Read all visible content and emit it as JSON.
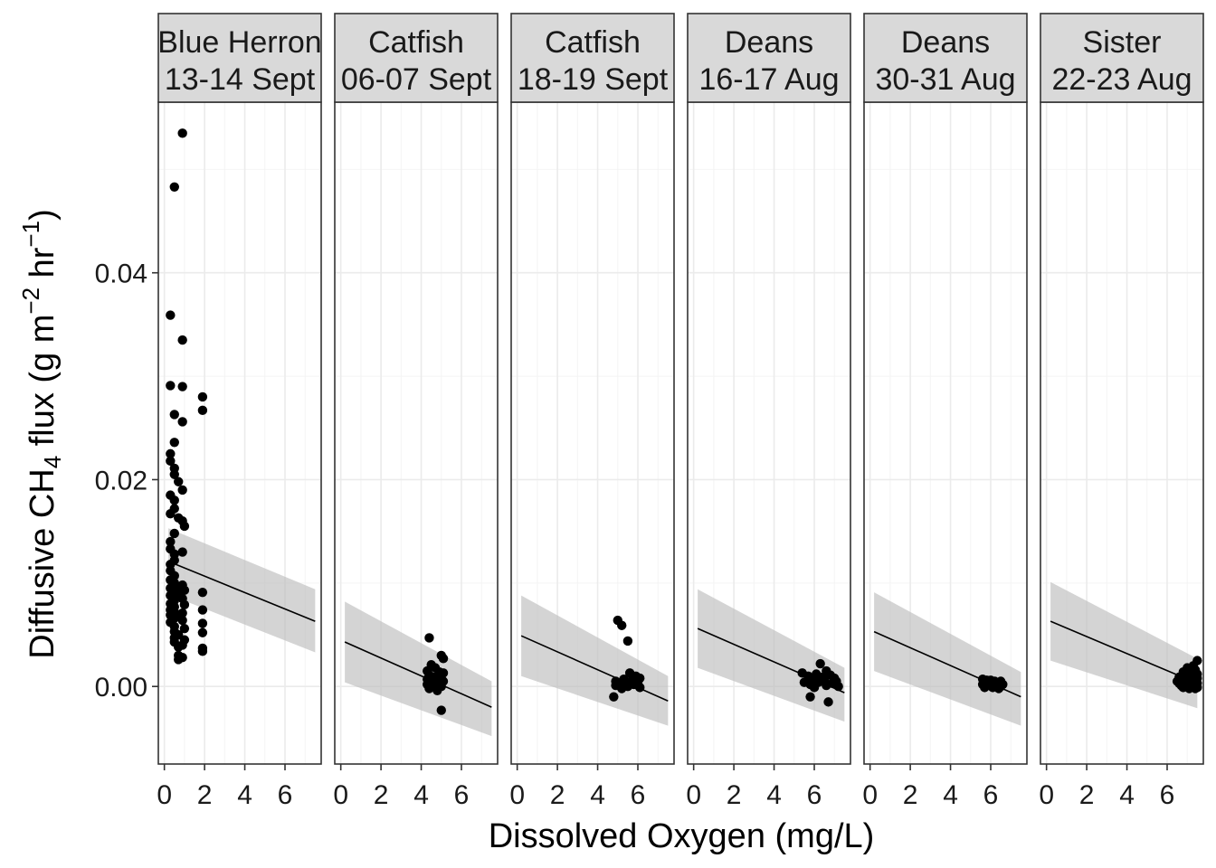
{
  "chart_data": {
    "type": "scatter",
    "xlabel": "Dissolved Oxygen (mg/L)",
    "ylabel": {
      "pre": "Diffusive CH",
      "sub": "4",
      "mid": " flux (g m",
      "sup1": "−2",
      "mid2": " hr",
      "sup2": "−1",
      "post": ")"
    },
    "xlim": [
      -0.3,
      7.8
    ],
    "ylim": [
      -0.0075,
      0.0565
    ],
    "x_ticks": [
      0,
      2,
      4,
      6
    ],
    "x_tick_labels": [
      "0",
      "2",
      "4",
      "6"
    ],
    "y_ticks": [
      0.0,
      0.02,
      0.04
    ],
    "y_tick_labels": [
      "0.00",
      "0.02",
      "0.04"
    ],
    "grid": true,
    "colors": {
      "points": "#000000",
      "line": "#000000",
      "ribbon": "#bdbdbd",
      "strip_bg": "#d9d9d9",
      "grid_major": "#ebebeb",
      "grid_minor": "#f4f4f4",
      "panel_border": "#333333"
    },
    "panels": [
      {
        "label_1": "Blue Herron",
        "label_2": "13-14 Sept",
        "fit": {
          "x": [
            0.2,
            7.5
          ],
          "y": [
            0.0121,
            0.0063
          ]
        },
        "ribbon": {
          "x": [
            0.2,
            7.5
          ],
          "upper": [
            0.0153,
            0.0094
          ],
          "lower": [
            0.0089,
            0.0033
          ]
        },
        "points": [
          [
            0.9,
            0.0535
          ],
          [
            0.5,
            0.0483
          ],
          [
            0.3,
            0.0359
          ],
          [
            0.9,
            0.0335
          ],
          [
            0.3,
            0.0291
          ],
          [
            0.9,
            0.029
          ],
          [
            1.9,
            0.028
          ],
          [
            1.9,
            0.0267
          ],
          [
            0.5,
            0.0263
          ],
          [
            0.9,
            0.0256
          ],
          [
            0.5,
            0.0236
          ],
          [
            0.3,
            0.0225
          ],
          [
            0.3,
            0.0218
          ],
          [
            0.5,
            0.0211
          ],
          [
            0.5,
            0.0205
          ],
          [
            0.7,
            0.0198
          ],
          [
            0.9,
            0.019
          ],
          [
            0.3,
            0.0185
          ],
          [
            0.5,
            0.018
          ],
          [
            0.5,
            0.0172
          ],
          [
            0.3,
            0.0167
          ],
          [
            0.7,
            0.0163
          ],
          [
            0.9,
            0.016
          ],
          [
            1.0,
            0.0155
          ],
          [
            0.5,
            0.0148
          ],
          [
            0.3,
            0.014
          ],
          [
            0.3,
            0.0133
          ],
          [
            0.5,
            0.0128
          ],
          [
            0.9,
            0.013
          ],
          [
            0.5,
            0.0122
          ],
          [
            0.3,
            0.0118
          ],
          [
            0.3,
            0.0112
          ],
          [
            0.5,
            0.0107
          ],
          [
            0.3,
            0.0103
          ],
          [
            0.5,
            0.01
          ],
          [
            0.9,
            0.0098
          ],
          [
            0.3,
            0.0095
          ],
          [
            0.7,
            0.0094
          ],
          [
            1.0,
            0.0093
          ],
          [
            1.9,
            0.0091
          ],
          [
            0.5,
            0.009
          ],
          [
            0.3,
            0.0088
          ],
          [
            0.7,
            0.0087
          ],
          [
            0.9,
            0.0085
          ],
          [
            0.5,
            0.0083
          ],
          [
            0.3,
            0.008
          ],
          [
            1.0,
            0.0079
          ],
          [
            0.5,
            0.0077
          ],
          [
            0.3,
            0.0074
          ],
          [
            1.9,
            0.0074
          ],
          [
            0.5,
            0.0072
          ],
          [
            0.9,
            0.0071
          ],
          [
            0.3,
            0.0069
          ],
          [
            0.7,
            0.0068
          ],
          [
            0.5,
            0.0066
          ],
          [
            0.9,
            0.0064
          ],
          [
            0.3,
            0.0062
          ],
          [
            1.9,
            0.0061
          ],
          [
            0.5,
            0.0058
          ],
          [
            1.0,
            0.0056
          ],
          [
            0.5,
            0.0053
          ],
          [
            1.9,
            0.0052
          ],
          [
            0.7,
            0.005
          ],
          [
            0.5,
            0.0047
          ],
          [
            1.0,
            0.0045
          ],
          [
            0.5,
            0.0043
          ],
          [
            0.9,
            0.004
          ],
          [
            0.7,
            0.0038
          ],
          [
            1.9,
            0.0037
          ],
          [
            1.9,
            0.0034
          ],
          [
            0.7,
            0.003
          ],
          [
            0.9,
            0.0028
          ],
          [
            0.7,
            0.0026
          ]
        ]
      },
      {
        "label_1": "Catfish",
        "label_2": "06-07 Sept",
        "fit": {
          "x": [
            0.2,
            7.5
          ],
          "y": [
            0.0043,
            -0.002
          ]
        },
        "ribbon": {
          "x": [
            0.2,
            7.5
          ],
          "upper": [
            0.0082,
            0.0005
          ],
          "lower": [
            0.0004,
            -0.0048
          ]
        },
        "points": [
          [
            4.4,
            0.0047
          ],
          [
            5.0,
            0.003
          ],
          [
            5.1,
            0.0027
          ],
          [
            4.5,
            0.0021
          ],
          [
            4.7,
            0.0018
          ],
          [
            4.3,
            0.0015
          ],
          [
            4.9,
            0.0014
          ],
          [
            5.1,
            0.0013
          ],
          [
            4.4,
            0.0011
          ],
          [
            4.8,
            0.001
          ],
          [
            4.6,
            0.0009
          ],
          [
            5.0,
            0.0008
          ],
          [
            4.3,
            0.0007
          ],
          [
            4.7,
            0.0006
          ],
          [
            5.1,
            0.0005
          ],
          [
            4.5,
            0.0004
          ],
          [
            4.9,
            0.0003
          ],
          [
            4.3,
            0.0002
          ],
          [
            4.7,
            0.0001
          ],
          [
            5.0,
            0.0
          ],
          [
            4.4,
            -0.0002
          ],
          [
            4.8,
            -0.0004
          ],
          [
            5.0,
            -0.0023
          ]
        ]
      },
      {
        "label_1": "Catfish",
        "label_2": "18-19 Sept",
        "fit": {
          "x": [
            0.2,
            7.5
          ],
          "y": [
            0.0049,
            -0.0014
          ]
        },
        "ribbon": {
          "x": [
            0.2,
            7.5
          ],
          "upper": [
            0.0088,
            0.001
          ],
          "lower": [
            0.001,
            -0.0038
          ]
        },
        "points": [
          [
            5.0,
            0.0064
          ],
          [
            5.2,
            0.0059
          ],
          [
            5.5,
            0.0044
          ],
          [
            5.6,
            0.0013
          ],
          [
            5.9,
            0.001
          ],
          [
            6.1,
            0.0008
          ],
          [
            5.3,
            0.0007
          ],
          [
            5.7,
            0.0006
          ],
          [
            4.9,
            0.0005
          ],
          [
            5.4,
            0.0004
          ],
          [
            6.0,
            0.0004
          ],
          [
            5.1,
            0.0003
          ],
          [
            5.8,
            0.0002
          ],
          [
            4.9,
            0.0001
          ],
          [
            5.5,
            0.0
          ],
          [
            6.1,
            -0.0001
          ],
          [
            5.2,
            -0.0002
          ],
          [
            4.8,
            -0.001
          ]
        ]
      },
      {
        "label_1": "Deans",
        "label_2": "16-17 Aug",
        "fit": {
          "x": [
            0.2,
            7.5
          ],
          "y": [
            0.0056,
            -0.0006
          ]
        },
        "ribbon": {
          "x": [
            0.2,
            7.5
          ],
          "upper": [
            0.0094,
            0.0018
          ],
          "lower": [
            0.0018,
            -0.0034
          ]
        },
        "points": [
          [
            6.3,
            0.0022
          ],
          [
            6.6,
            0.0015
          ],
          [
            5.4,
            0.0013
          ],
          [
            6.1,
            0.0012
          ],
          [
            6.8,
            0.0011
          ],
          [
            5.7,
            0.001
          ],
          [
            6.4,
            0.0009
          ],
          [
            7.0,
            0.0008
          ],
          [
            5.9,
            0.0007
          ],
          [
            6.5,
            0.0006
          ],
          [
            7.1,
            0.0005
          ],
          [
            5.5,
            0.0004
          ],
          [
            6.2,
            0.0004
          ],
          [
            6.9,
            0.0003
          ],
          [
            5.8,
            0.0002
          ],
          [
            6.6,
            0.0001
          ],
          [
            7.2,
            0.0
          ],
          [
            6.0,
            -0.0001
          ],
          [
            5.8,
            -0.001
          ],
          [
            6.7,
            -0.0015
          ]
        ]
      },
      {
        "label_1": "Deans",
        "label_2": "30-31 Aug",
        "fit": {
          "x": [
            0.2,
            7.5
          ],
          "y": [
            0.0053,
            -0.001
          ]
        },
        "ribbon": {
          "x": [
            0.2,
            7.5
          ],
          "upper": [
            0.0091,
            0.0014
          ],
          "lower": [
            0.0015,
            -0.0038
          ]
        },
        "points": [
          [
            5.6,
            0.0007
          ],
          [
            5.8,
            0.0006
          ],
          [
            6.0,
            0.0006
          ],
          [
            6.2,
            0.0005
          ],
          [
            6.5,
            0.0005
          ],
          [
            5.7,
            0.0004
          ],
          [
            5.9,
            0.0004
          ],
          [
            6.1,
            0.0003
          ],
          [
            6.3,
            0.0003
          ],
          [
            6.6,
            0.0002
          ],
          [
            5.6,
            0.0002
          ],
          [
            5.8,
            0.0001
          ],
          [
            6.0,
            0.0001
          ],
          [
            6.2,
            0.0
          ],
          [
            6.5,
            0.0
          ],
          [
            5.7,
            -0.0001
          ],
          [
            6.1,
            -0.0001
          ],
          [
            6.4,
            -0.0002
          ]
        ]
      },
      {
        "label_1": "Sister",
        "label_2": "22-23 Aug",
        "fit": {
          "x": [
            0.2,
            7.5
          ],
          "y": [
            0.0063,
            0.0003
          ]
        },
        "ribbon": {
          "x": [
            0.2,
            7.5
          ],
          "upper": [
            0.0101,
            0.0027
          ],
          "lower": [
            0.0025,
            -0.0021
          ]
        },
        "points": [
          [
            7.5,
            0.0025
          ],
          [
            7.3,
            0.002
          ],
          [
            7.0,
            0.0018
          ],
          [
            7.4,
            0.0016
          ],
          [
            6.8,
            0.0014
          ],
          [
            7.2,
            0.0013
          ],
          [
            7.5,
            0.0012
          ],
          [
            6.9,
            0.0011
          ],
          [
            7.1,
            0.001
          ],
          [
            6.6,
            0.0009
          ],
          [
            7.3,
            0.0009
          ],
          [
            7.5,
            0.0008
          ],
          [
            6.7,
            0.0007
          ],
          [
            7.0,
            0.0007
          ],
          [
            7.2,
            0.0006
          ],
          [
            7.4,
            0.0006
          ],
          [
            6.5,
            0.0005
          ],
          [
            6.8,
            0.0005
          ],
          [
            7.1,
            0.0004
          ],
          [
            7.3,
            0.0004
          ],
          [
            7.5,
            0.0003
          ],
          [
            6.6,
            0.0003
          ],
          [
            6.9,
            0.0002
          ],
          [
            7.2,
            0.0002
          ],
          [
            7.4,
            0.0001
          ],
          [
            6.7,
            0.0001
          ],
          [
            7.0,
            0.0
          ],
          [
            7.3,
            0.0
          ],
          [
            7.5,
            -0.0001
          ],
          [
            6.8,
            -0.0001
          ],
          [
            7.1,
            -0.0002
          ],
          [
            7.4,
            -0.0002
          ]
        ]
      }
    ]
  }
}
